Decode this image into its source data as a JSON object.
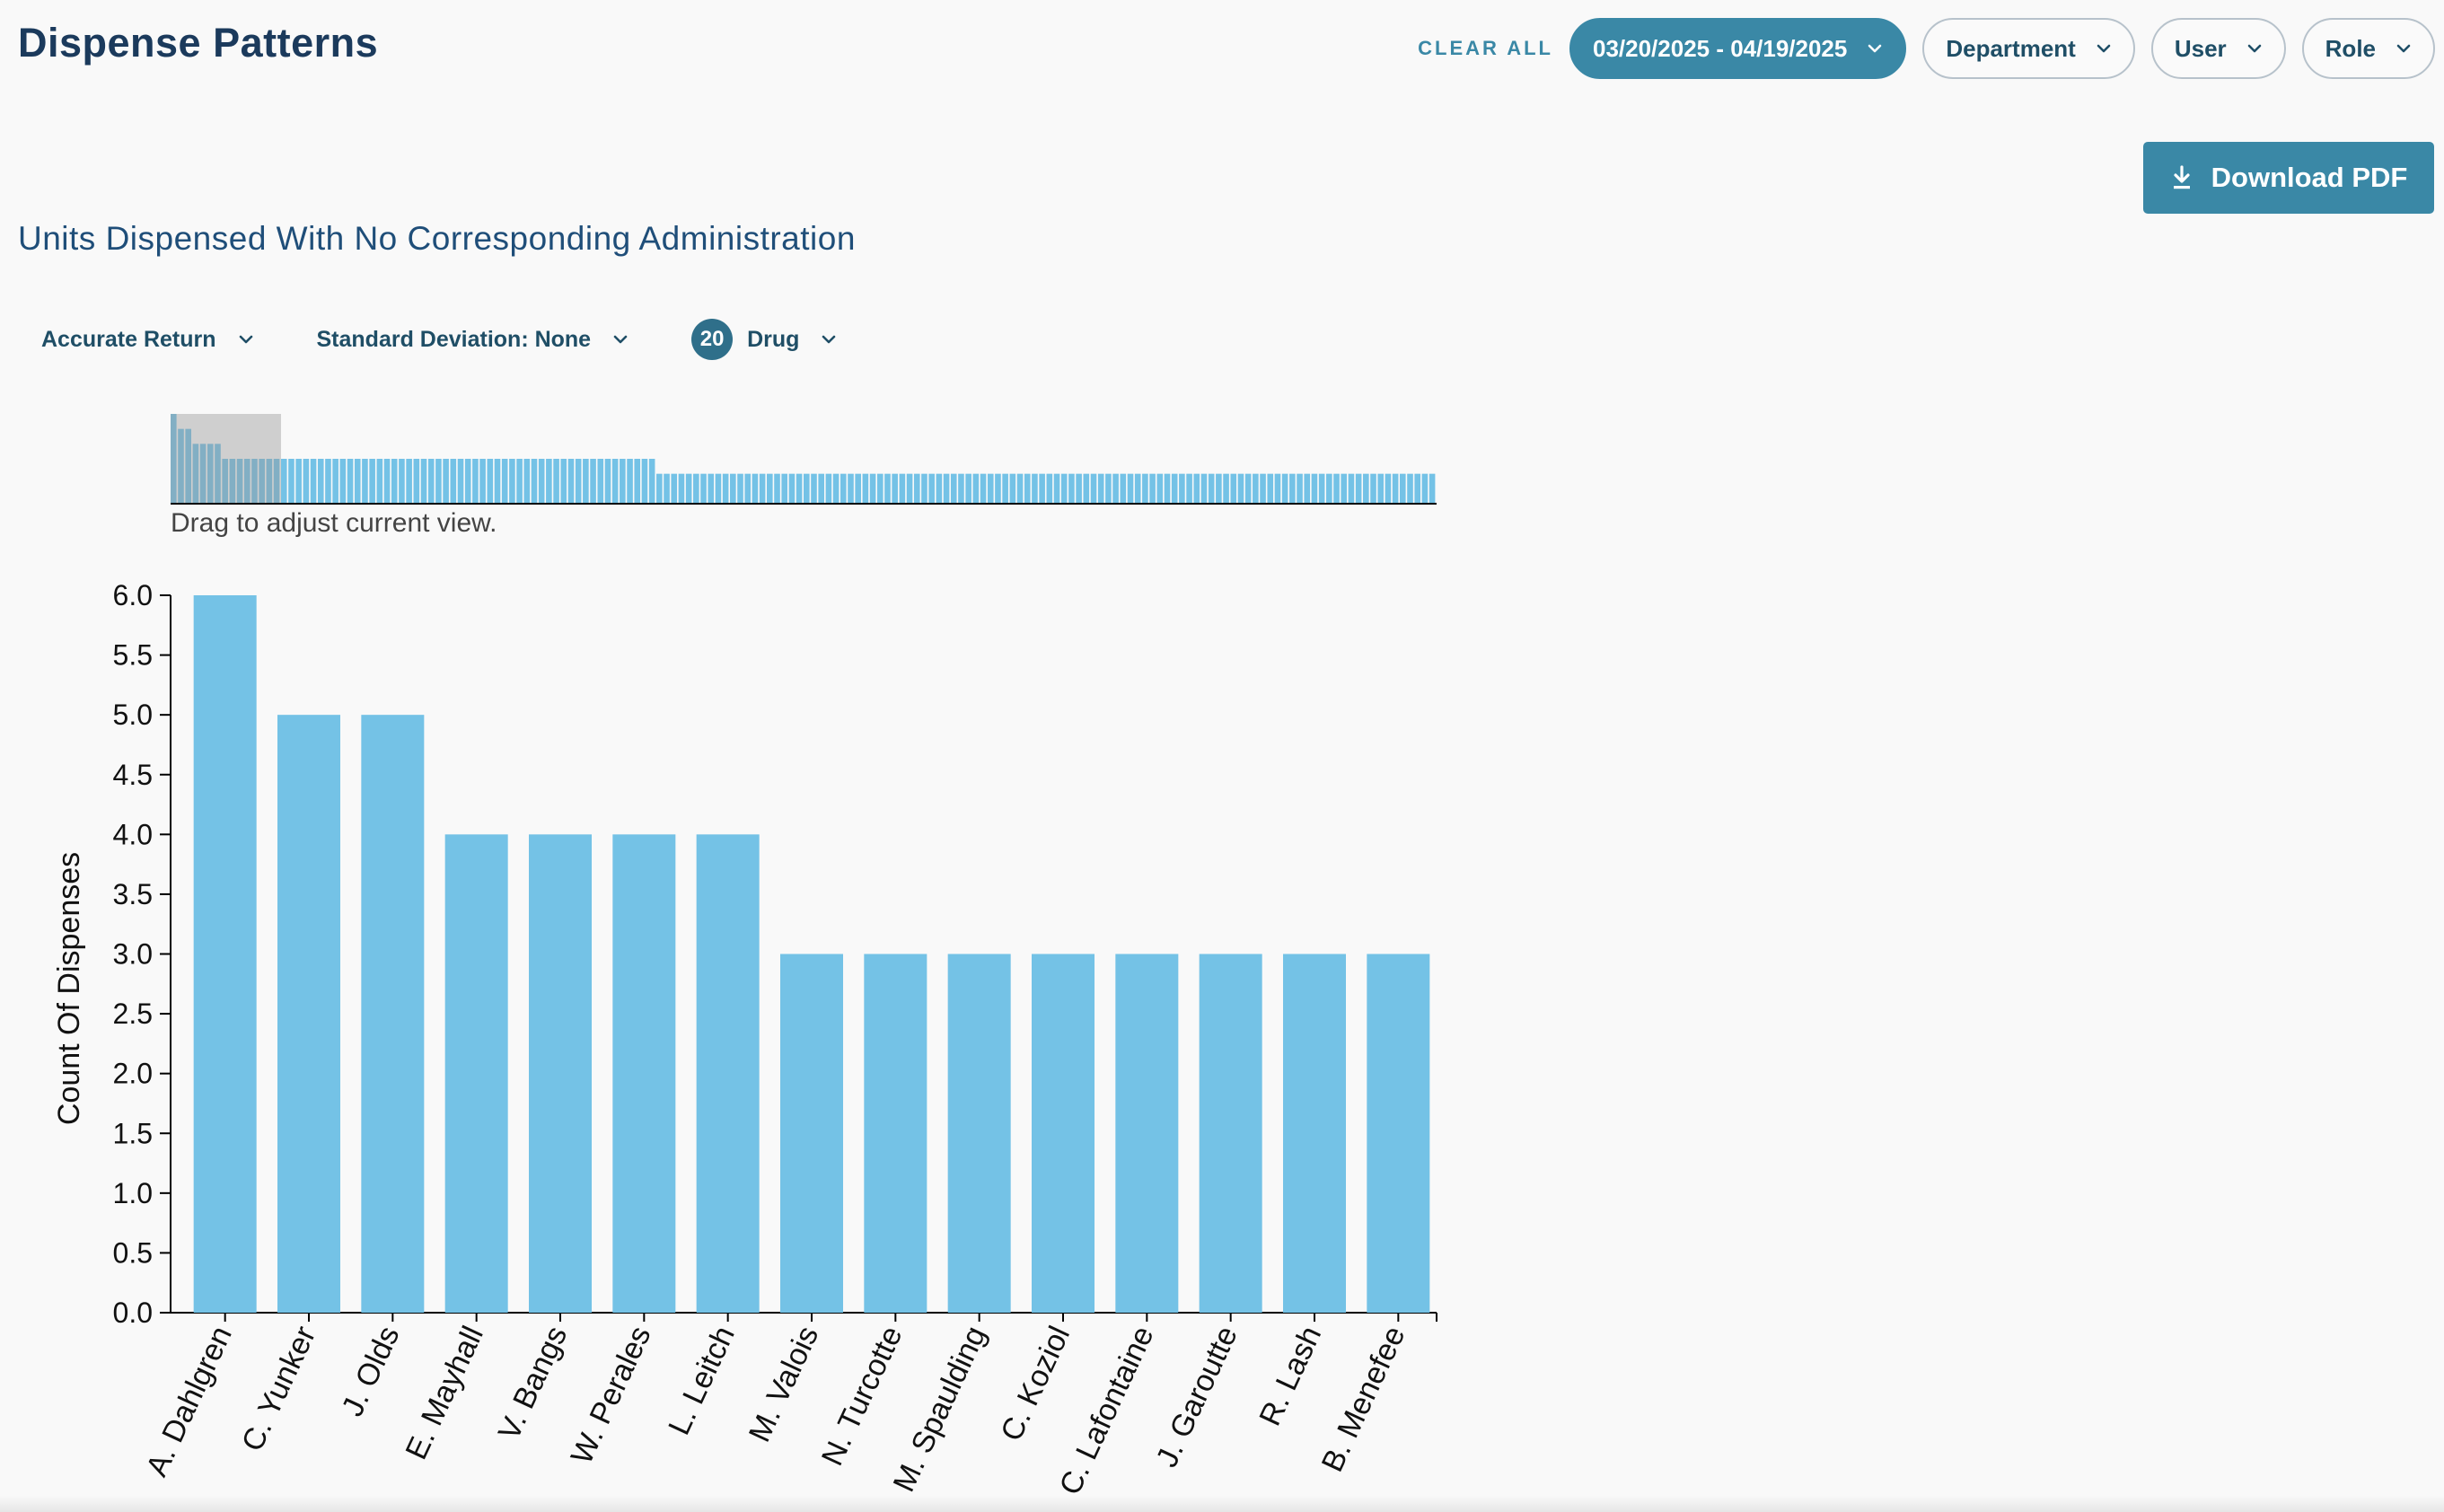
{
  "header": {
    "title": "Dispense Patterns",
    "clear_all": "CLEAR ALL",
    "date_range": "03/20/2025 - 04/19/2025",
    "department": "Department",
    "user": "User",
    "role": "Role"
  },
  "toolbar": {
    "download_label": "Download PDF"
  },
  "chart_title": "Units Dispensed With No Corresponding Administration",
  "filters": {
    "accurate_return": "Accurate Return",
    "std_dev": "Standard Deviation: None",
    "drug_count": "20",
    "drug": "Drug"
  },
  "brush": {
    "hint": "Drag to adjust current view.",
    "overview_values": [
      6,
      5,
      5,
      4,
      4,
      4,
      4,
      3,
      3,
      3,
      3,
      3,
      3,
      3,
      3,
      3,
      3,
      3,
      3,
      3,
      3,
      3,
      3,
      3,
      3,
      3,
      3,
      3,
      3,
      3,
      3,
      3,
      3,
      3,
      3,
      3,
      3,
      3,
      3,
      3,
      3,
      3,
      3,
      3,
      3,
      3,
      3,
      3,
      3,
      3,
      3,
      3,
      3,
      3,
      3,
      3,
      3,
      3,
      3,
      3,
      3,
      3,
      3,
      3,
      3,
      3,
      2,
      2,
      2,
      2,
      2,
      2,
      2,
      2,
      2,
      2,
      2,
      2,
      2,
      2,
      2,
      2,
      2,
      2,
      2,
      2,
      2,
      2,
      2,
      2,
      2,
      2,
      2,
      2,
      2,
      2,
      2,
      2,
      2,
      2,
      2,
      2,
      2,
      2,
      2,
      2,
      2,
      2,
      2,
      2,
      2,
      2,
      2,
      2,
      2,
      2,
      2,
      2,
      2,
      2,
      2,
      2,
      2,
      2,
      2,
      2,
      2,
      2,
      2,
      2,
      2,
      2,
      2,
      2,
      2,
      2,
      2,
      2,
      2,
      2,
      2,
      2,
      2,
      2,
      2,
      2,
      2,
      2,
      2,
      2,
      2,
      2,
      2,
      2,
      2,
      2,
      2,
      2,
      2,
      2,
      2,
      2,
      2,
      2,
      2,
      2,
      2,
      2,
      2,
      2,
      2,
      2
    ],
    "selection": [
      0,
      15
    ]
  },
  "colors": {
    "accent": "#3a88a6",
    "bar": "#74c2e6",
    "brush_bar": "#74c2e6"
  },
  "chart_data": {
    "type": "bar",
    "categories": [
      "A. Dahlgren",
      "C. Yunker",
      "J. Olds",
      "E. Mayhall",
      "V. Bangs",
      "W. Perales",
      "L. Leitch",
      "M. Valois",
      "N. Turcotte",
      "M. Spaulding",
      "C. Koziol",
      "C. Lafontaine",
      "J. Garoutte",
      "R. Lash",
      "B. Menefee"
    ],
    "values": [
      6,
      5,
      5,
      4,
      4,
      4,
      4,
      3,
      3,
      3,
      3,
      3,
      3,
      3,
      3
    ],
    "ylabel": "Count Of Dispenses",
    "xlabel": "",
    "ylim": [
      0,
      6
    ],
    "yticks": [
      "0.0",
      "0.5",
      "1.0",
      "1.5",
      "2.0",
      "2.5",
      "3.0",
      "3.5",
      "4.0",
      "4.5",
      "5.0",
      "5.5",
      "6.0"
    ],
    "grid": false
  }
}
